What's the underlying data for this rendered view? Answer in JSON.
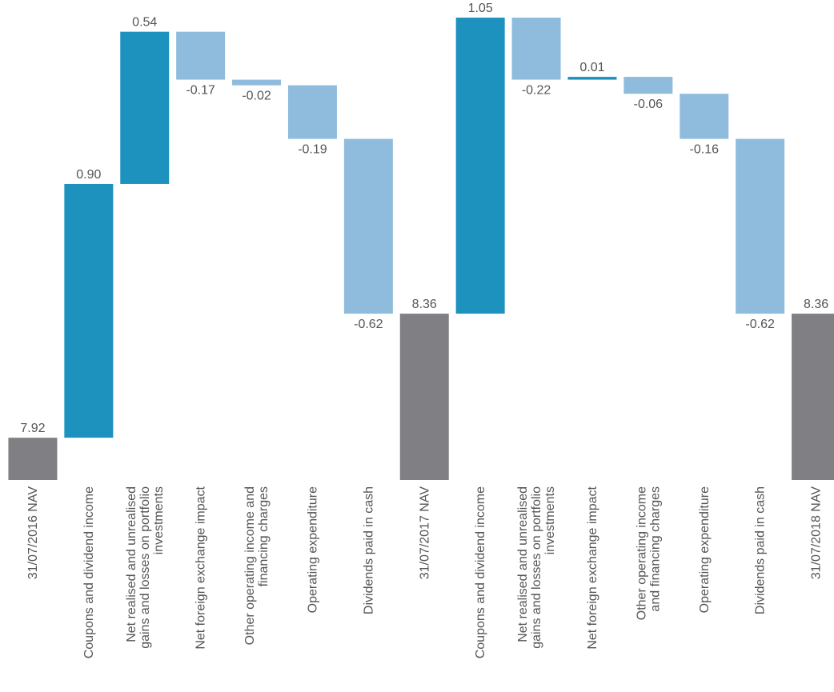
{
  "chart_data": {
    "type": "waterfall",
    "categories": [
      "31/07/2016 NAV",
      "Coupons and dividend income",
      "Net realised and unrealised\ngains and losses on portfolio\ninvestments",
      "Net foreign exchange impact",
      "Other operating income and\nfinancing charges",
      "Operating expenditure",
      "Dividends paid in cash",
      "31/07/2017 NAV",
      "Coupons and dividend income",
      "Net realised and unrealised\ngains and losses on portfolio\ninvestments",
      "Net foreign exchange impact",
      "Other operating income\nand financing charges",
      "Operating expenditure",
      "Dividends paid in cash",
      "31/07/2018 NAV"
    ],
    "values": [
      7.92,
      0.9,
      0.54,
      -0.17,
      -0.02,
      -0.19,
      -0.62,
      8.36,
      1.05,
      -0.22,
      0.01,
      -0.06,
      -0.16,
      -0.62,
      8.36
    ],
    "value_labels": [
      "7.92",
      "0.90",
      "0.54",
      "-0.17",
      "-0.02",
      "-0.19",
      "-0.62",
      "8.36",
      "1.05",
      "-0.22",
      "0.01",
      "-0.06",
      "-0.16",
      "-0.62",
      "8.36"
    ],
    "totals": [
      0,
      7,
      14
    ],
    "colors": {
      "total": "#808084",
      "increase": "#1e92bf",
      "decrease": "#8fbcdc"
    },
    "ylim": [
      7.77,
      9.43
    ]
  }
}
